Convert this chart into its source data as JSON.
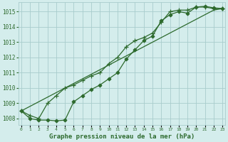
{
  "title": "Graphe pression niveau de la mer (hPa)",
  "x_labels": [
    "0",
    "1",
    "2",
    "3",
    "4",
    "5",
    "6",
    "7",
    "8",
    "9",
    "10",
    "11",
    "12",
    "13",
    "14",
    "15",
    "16",
    "17",
    "18",
    "19",
    "20",
    "21",
    "22",
    "23"
  ],
  "x_values": [
    0,
    1,
    2,
    3,
    4,
    5,
    6,
    7,
    8,
    9,
    10,
    11,
    12,
    13,
    14,
    15,
    16,
    17,
    18,
    19,
    20,
    21,
    22,
    23
  ],
  "line_straight": [
    1008.5,
    1008.8,
    1009.1,
    1009.4,
    1009.7,
    1010.0,
    1010.3,
    1010.6,
    1010.9,
    1011.2,
    1011.5,
    1011.8,
    1012.1,
    1012.4,
    1012.7,
    1013.0,
    1013.3,
    1013.6,
    1013.9,
    1014.2,
    1014.5,
    1014.8,
    1015.1,
    1015.2
  ],
  "line_plus": [
    1008.5,
    1008.2,
    1008.0,
    1009.0,
    1009.5,
    1010.0,
    1010.2,
    1010.5,
    1010.8,
    1011.0,
    1011.6,
    1012.0,
    1012.7,
    1013.1,
    1013.3,
    1013.6,
    1014.3,
    1015.0,
    1015.1,
    1015.1,
    1015.3,
    1015.3,
    1015.2,
    1015.2
  ],
  "line_diamond": [
    1008.5,
    1008.0,
    1007.9,
    1007.9,
    1007.85,
    1007.9,
    1009.1,
    1009.5,
    1009.9,
    1010.2,
    1010.6,
    1011.0,
    1011.9,
    1012.5,
    1013.1,
    1013.4,
    1014.4,
    1014.8,
    1015.0,
    1014.9,
    1015.3,
    1015.35,
    1015.25,
    1015.2
  ],
  "line_color": "#2d6a2d",
  "bg_color": "#d4edec",
  "grid_color": "#a8cccc",
  "ylim_min": 1007.6,
  "ylim_max": 1015.6,
  "yticks": [
    1008,
    1009,
    1010,
    1011,
    1012,
    1013,
    1014,
    1015
  ]
}
